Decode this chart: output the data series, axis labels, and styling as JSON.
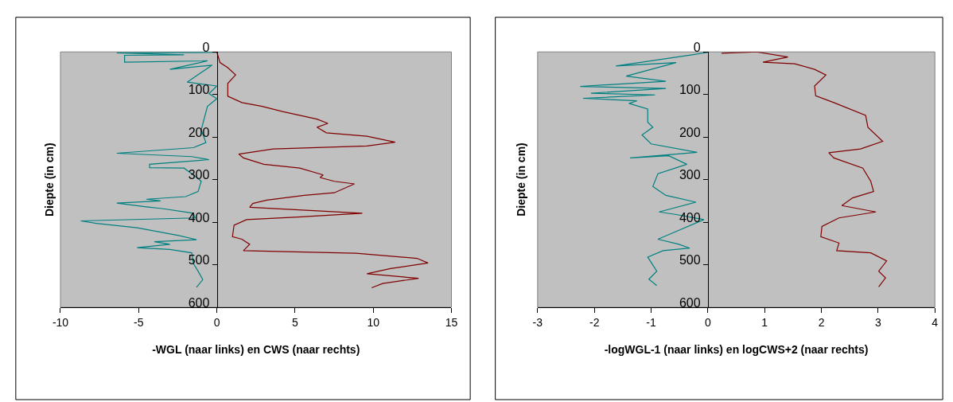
{
  "chart_data": [
    {
      "type": "line",
      "xlabel": "-WGL (naar links) en CWS (naar rechts)",
      "ylabel": "Diepte (in cm)",
      "xlim": [
        -10,
        15
      ],
      "xticks": [
        -10,
        -5,
        0,
        5,
        10,
        15
      ],
      "ylim": [
        600,
        0
      ],
      "yticks": [
        0,
        100,
        200,
        300,
        400,
        500,
        600
      ],
      "marker": "none",
      "line_style": "solid",
      "series": [
        {
          "color": "#008080",
          "x": [
            0,
            -6.4,
            -2.1,
            -5.9,
            -5.9,
            -0.6,
            -3.0,
            -0.3,
            -1.9,
            0,
            -0.5,
            0,
            -0.6,
            -1.0,
            -0.7,
            -1.5,
            -6.4,
            -1.6,
            -0.5,
            -4.3,
            -4.3,
            -2.1,
            -1.4,
            -1.0,
            -1.2,
            -2.0,
            -4.5,
            -3.6,
            -6.4,
            -4.5,
            -3.5,
            -1.5,
            -1.4,
            -8.7,
            -7.7,
            -5.1,
            -2.5,
            -1.3,
            -4.0,
            -3.0,
            -5.1,
            -3.0,
            -1.6,
            -1.5,
            -1.2,
            -0.9,
            -1.3
          ],
          "values": [
            1,
            2,
            7,
            8,
            24,
            21,
            41,
            31,
            71,
            80,
            98,
            110,
            128,
            183,
            213,
            225,
            238,
            246,
            253,
            264,
            272,
            273,
            292,
            304,
            328,
            340,
            346,
            350,
            355,
            364,
            368,
            379,
            390,
            397,
            403,
            413,
            431,
            441,
            446,
            452,
            460,
            464,
            472,
            497,
            515,
            535,
            553
          ]
        },
        {
          "color": "#800000",
          "x": [
            0,
            0.2,
            0.7,
            1.2,
            0.7,
            0.7,
            1.6,
            2.9,
            4.2,
            6.4,
            7.1,
            6.4,
            7.0,
            9.6,
            11.4,
            9.6,
            3.6,
            1.4,
            1.7,
            3.0,
            5.3,
            6.8,
            6.6,
            7.5,
            8.8,
            7.5,
            5.6,
            3.2,
            2.3,
            2.1,
            9.3,
            5.2,
            1.9,
            1.1,
            1.0,
            1.6,
            2.1,
            1.7,
            8.9,
            12.8,
            13.5,
            11.1,
            9.6,
            12.9,
            10.6,
            9.9
          ],
          "values": [
            0,
            25,
            37,
            54,
            74,
            104,
            119,
            128,
            140,
            158,
            168,
            177,
            190,
            198,
            212,
            221,
            228,
            240,
            249,
            264,
            273,
            289,
            295,
            304,
            310,
            331,
            337,
            348,
            356,
            365,
            379,
            388,
            394,
            407,
            434,
            440,
            452,
            467,
            473,
            485,
            496,
            509,
            521,
            532,
            544,
            554
          ]
        }
      ]
    },
    {
      "type": "line",
      "xlabel": "-logWGL-1 (naar links) en logCWS+2 (naar rechts)",
      "ylabel": "Diepte (in cm)",
      "xlim": [
        -3,
        4
      ],
      "xticks": [
        -3,
        -2,
        -1,
        0,
        1,
        2,
        3,
        4
      ],
      "ylim": [
        600,
        0
      ],
      "yticks": [
        0,
        100,
        200,
        300,
        400,
        500,
        600
      ],
      "marker": "none",
      "line_style": "solid",
      "series": [
        {
          "color": "#008080",
          "x": [
            0,
            -0.28,
            -1.62,
            -0.56,
            -1.44,
            -0.74,
            -2.25,
            -0.74,
            -2.06,
            -0.93,
            -2.2,
            -1.25,
            -1.39,
            -1.06,
            -1.06,
            -0.97,
            -1.16,
            -1.0,
            -0.19,
            -1.37,
            -0.69,
            -0.37,
            -0.88,
            -0.97,
            -0.74,
            -0.21,
            -0.86,
            -0.56,
            -0.07,
            -0.51,
            -0.88,
            -0.51,
            -0.32,
            -0.79,
            -1.06,
            -0.9,
            -1.04,
            -0.9
          ],
          "values": [
            1,
            7,
            33,
            25,
            57,
            69,
            81,
            86,
            97,
            101,
            109,
            115,
            121,
            134,
            165,
            177,
            195,
            216,
            236,
            249,
            244,
            264,
            286,
            316,
            337,
            353,
            376,
            382,
            394,
            419,
            440,
            452,
            461,
            467,
            482,
            515,
            534,
            549
          ]
        },
        {
          "color": "#800000",
          "x": [
            0.24,
            0.86,
            1.41,
            0.97,
            1.53,
            1.88,
            2.08,
            1.88,
            1.9,
            2.22,
            2.78,
            2.82,
            3.08,
            2.69,
            2.13,
            2.22,
            2.73,
            2.87,
            2.92,
            2.55,
            2.36,
            2.96,
            2.31,
            2.01,
            1.99,
            2.31,
            2.27,
            2.87,
            3.15,
            3.01,
            3.13,
            3.01
          ],
          "values": [
            3,
            0,
            12,
            24,
            28,
            41,
            54,
            80,
            103,
            119,
            149,
            177,
            210,
            228,
            237,
            249,
            273,
            304,
            328,
            343,
            361,
            376,
            390,
            410,
            434,
            449,
            467,
            472,
            491,
            515,
            531,
            552
          ]
        }
      ]
    }
  ]
}
